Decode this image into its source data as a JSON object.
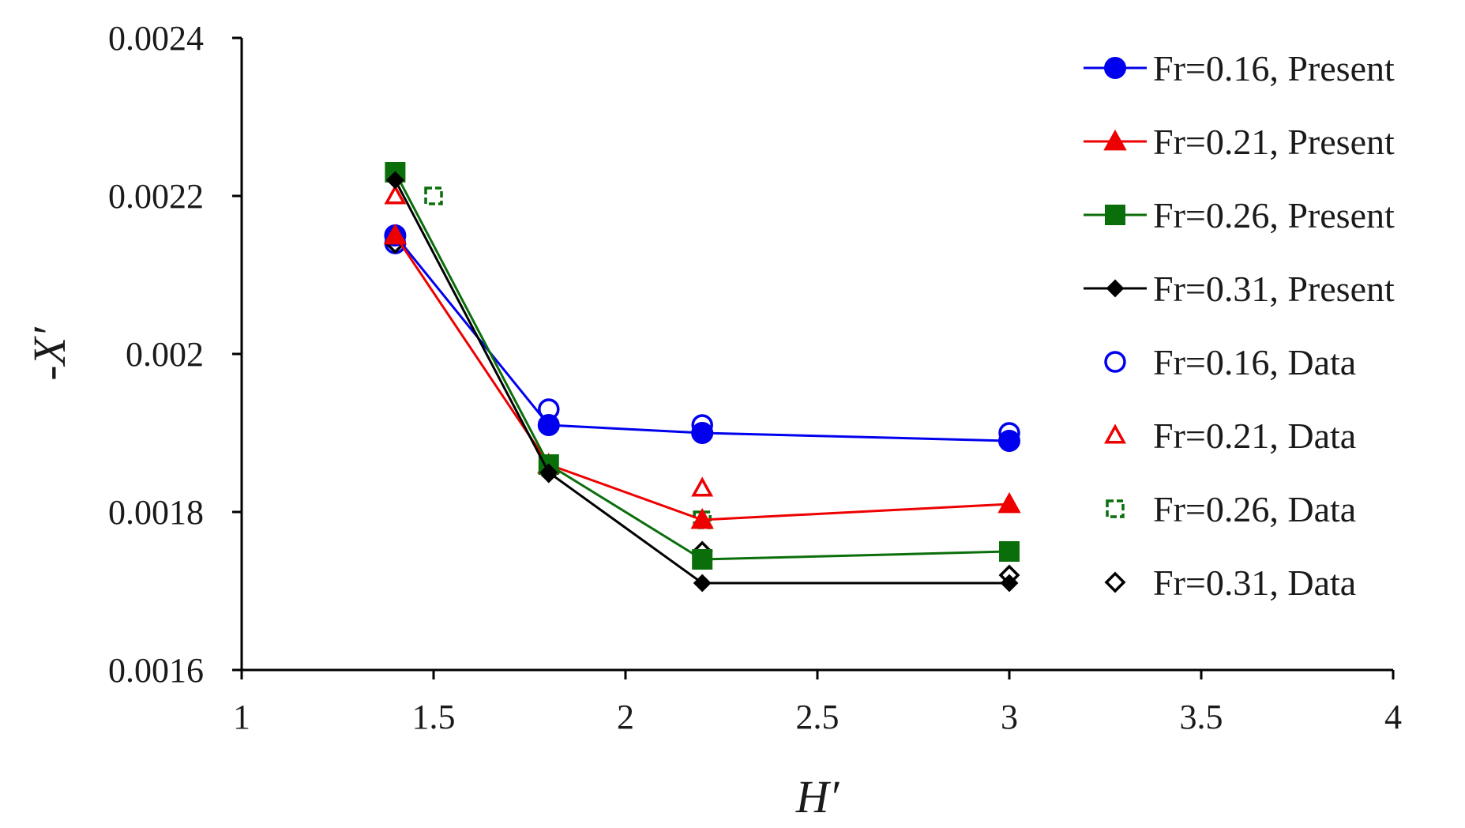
{
  "chart_data": {
    "type": "line",
    "title": "",
    "xlabel": "H′",
    "ylabel": "-X′",
    "xlim": [
      1,
      4
    ],
    "ylim": [
      0.0016,
      0.0024
    ],
    "xticks": [
      "1",
      "1.5",
      "2",
      "2.5",
      "3",
      "3.5",
      "4"
    ],
    "yticks": [
      "0.0016",
      "0.0018",
      "0.002",
      "0.0022",
      "0.0024"
    ],
    "grid": false,
    "legend_position": "right",
    "series": [
      {
        "name": "Fr=0.16, Present",
        "kind": "line",
        "marker": "circle-filled",
        "color": "#0000ee",
        "x": [
          1.4,
          1.8,
          2.2,
          3.0
        ],
        "y": [
          0.00215,
          0.00191,
          0.0019,
          0.00189
        ]
      },
      {
        "name": "Fr=0.21, Present",
        "kind": "line",
        "marker": "triangle-filled",
        "color": "#ee0000",
        "x": [
          1.4,
          1.8,
          2.2,
          3.0
        ],
        "y": [
          0.00215,
          0.00186,
          0.00179,
          0.00181
        ]
      },
      {
        "name": "Fr=0.26, Present",
        "kind": "line",
        "marker": "square-filled",
        "color": "#0a6e0a",
        "x": [
          1.4,
          1.8,
          2.2,
          3.0
        ],
        "y": [
          0.00223,
          0.00186,
          0.00174,
          0.00175
        ]
      },
      {
        "name": "Fr=0.31, Present",
        "kind": "line",
        "marker": "diamond-filled",
        "color": "#000000",
        "x": [
          1.4,
          1.8,
          2.2,
          3.0
        ],
        "y": [
          0.00222,
          0.00185,
          0.00171,
          0.00171
        ]
      },
      {
        "name": "Fr=0.16, Data",
        "kind": "scatter",
        "marker": "circle-open",
        "color": "#0000ee",
        "x": [
          1.4,
          1.8,
          2.2,
          3.0
        ],
        "y": [
          0.00214,
          0.00193,
          0.00191,
          0.0019
        ]
      },
      {
        "name": "Fr=0.21, Data",
        "kind": "scatter",
        "marker": "triangle-open",
        "color": "#ee0000",
        "x": [
          1.4,
          1.8,
          2.2,
          3.0
        ],
        "y": [
          0.0022,
          0.00186,
          0.00183,
          0.00181
        ]
      },
      {
        "name": "Fr=0.26, Data",
        "kind": "scatter",
        "marker": "square-open",
        "color": "#0a6e0a",
        "x": [
          1.5,
          1.8,
          2.2,
          3.0
        ],
        "y": [
          0.0022,
          0.00186,
          0.00179,
          0.00175
        ]
      },
      {
        "name": "Fr=0.31, Data",
        "kind": "scatter",
        "marker": "diamond-open",
        "color": "#000000",
        "x": [
          1.4,
          1.8,
          2.2,
          3.0
        ],
        "y": [
          0.00214,
          0.00185,
          0.00175,
          0.00172
        ]
      }
    ]
  }
}
